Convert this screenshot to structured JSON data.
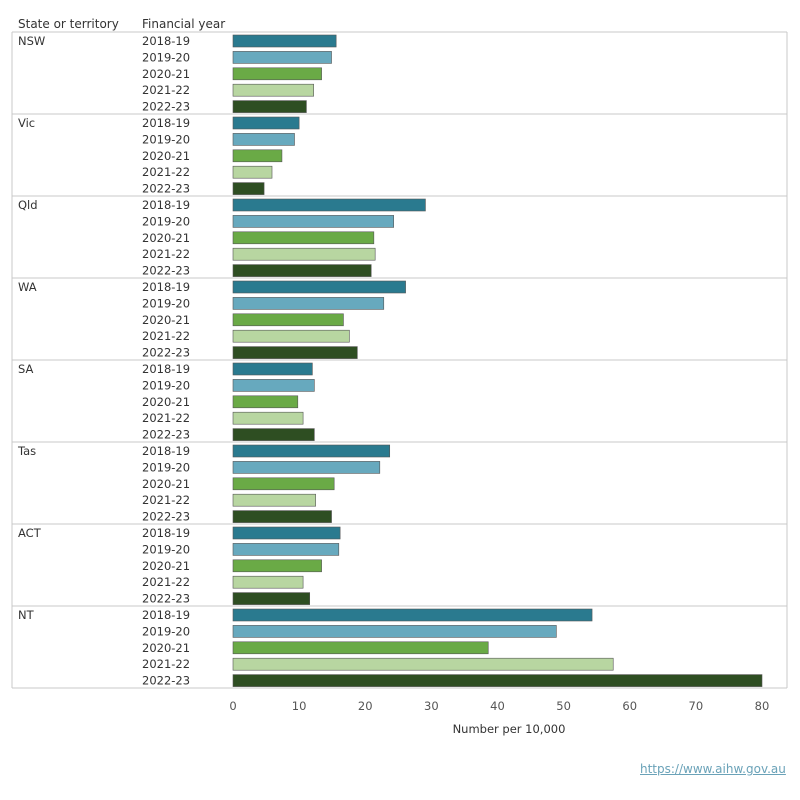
{
  "chart_data": {
    "type": "bar",
    "orientation": "horizontal",
    "column_headers": [
      "State or territory",
      "Financial year"
    ],
    "xlabel": "Number per 10,000",
    "xlim": [
      0,
      80
    ],
    "xticks": [
      0,
      10,
      20,
      30,
      40,
      50,
      60,
      70,
      80
    ],
    "years": [
      "2018-19",
      "2019-20",
      "2020-21",
      "2021-22",
      "2022-23"
    ],
    "year_colors": [
      "#2a7a8f",
      "#67a9be",
      "#6aaa46",
      "#b8d6a1",
      "#2e4e22"
    ],
    "groups": [
      {
        "state": "NSW",
        "values": [
          15.6,
          14.9,
          13.4,
          12.2,
          11.1
        ]
      },
      {
        "state": "Vic",
        "values": [
          10.0,
          9.3,
          7.4,
          5.9,
          4.7
        ]
      },
      {
        "state": "Qld",
        "values": [
          29.1,
          24.3,
          21.3,
          21.5,
          20.9
        ]
      },
      {
        "state": "WA",
        "values": [
          26.1,
          22.8,
          16.7,
          17.6,
          18.8
        ]
      },
      {
        "state": "SA",
        "values": [
          12.0,
          12.3,
          9.8,
          10.6,
          12.3
        ]
      },
      {
        "state": "Tas",
        "values": [
          23.7,
          22.2,
          15.3,
          12.5,
          14.9
        ]
      },
      {
        "state": "ACT",
        "values": [
          16.2,
          16.0,
          13.4,
          10.6,
          11.6
        ]
      },
      {
        "state": "NT",
        "values": [
          54.3,
          48.9,
          38.6,
          57.5,
          80.0
        ]
      }
    ]
  },
  "footer": {
    "source_url": "https://www.aihw.gov.au"
  }
}
